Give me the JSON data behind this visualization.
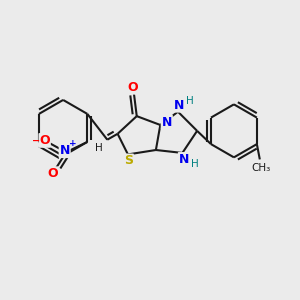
{
  "bg_color": "#ebebeb",
  "bond_color": "#1a1a1a",
  "bond_width": 1.5,
  "atom_colors": {
    "N": "#0000ee",
    "O": "#ff0000",
    "S": "#bbaa00",
    "H_teal": "#008080",
    "C": "#1a1a1a"
  },
  "layout": {
    "xlim": [
      0,
      10
    ],
    "ylim": [
      0,
      10
    ]
  }
}
